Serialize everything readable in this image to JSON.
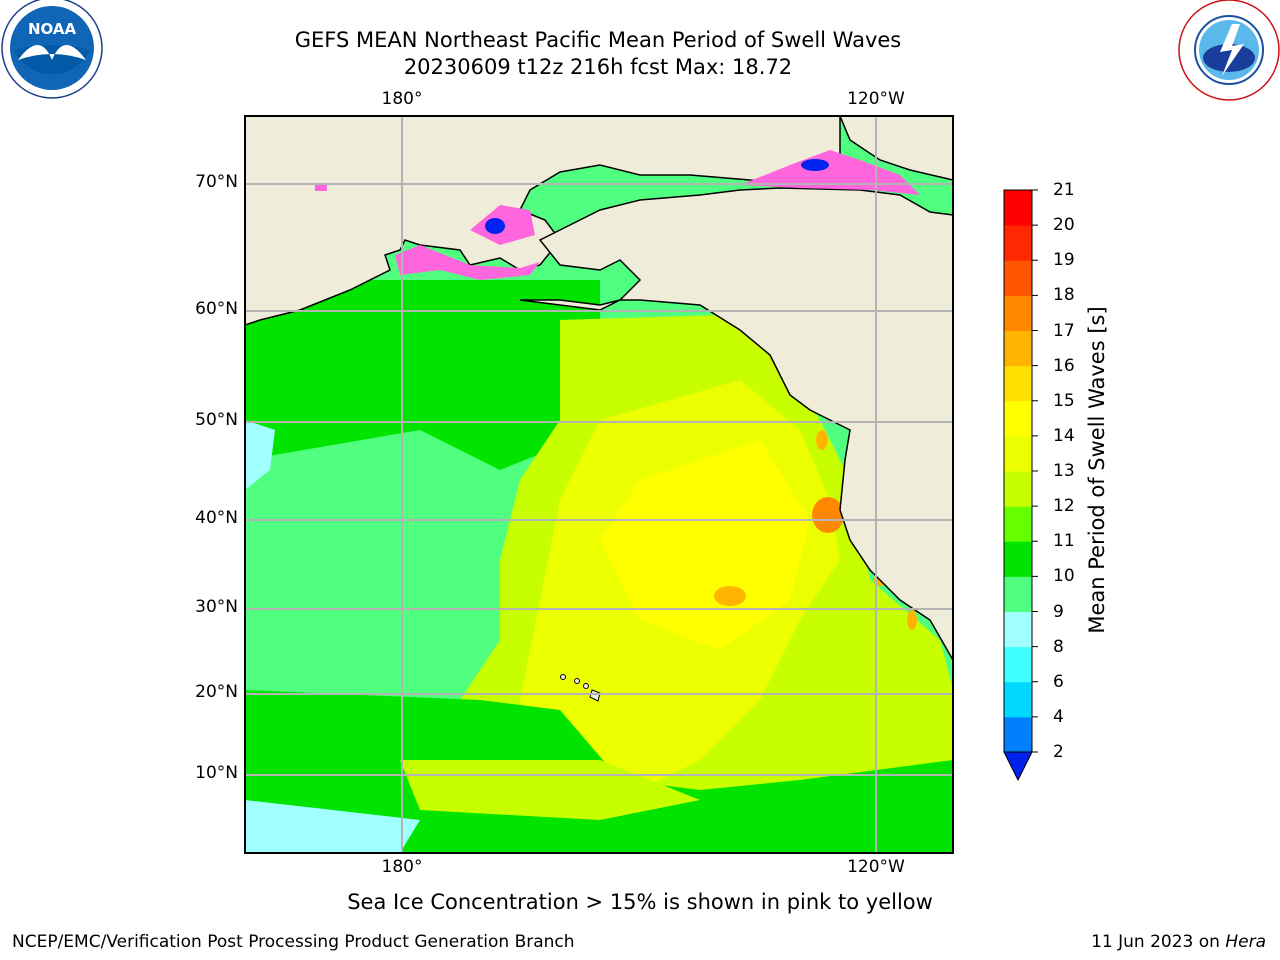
{
  "header": {
    "title_line1": "GEFS MEAN Northeast Pacific Mean Period of Swell Waves",
    "title_line2": "20230609 t12z 216h fcst   Max: 18.72"
  },
  "logos": {
    "left": "NOAA",
    "right": "NATIONAL WEATHER SERVICE"
  },
  "map": {
    "lon_labels": [
      "180°",
      "120°W"
    ],
    "lat_labels": [
      "70°N",
      "60°N",
      "50°N",
      "40°N",
      "30°N",
      "20°N",
      "10°N"
    ]
  },
  "colorbar": {
    "label": "Mean Period of Swell Waves [s]",
    "ticks": [
      "2",
      "4",
      "6",
      "8",
      "9",
      "10",
      "11",
      "12",
      "13",
      "14",
      "15",
      "16",
      "17",
      "18",
      "19",
      "20",
      "21"
    ],
    "colors": [
      "#0022ee",
      "#0080ff",
      "#00d8ff",
      "#40ffff",
      "#a0ffff",
      "#50ff80",
      "#00e400",
      "#66ff00",
      "#c8ff00",
      "#ecff00",
      "#ffff00",
      "#ffe000",
      "#ffb400",
      "#ff8800",
      "#ff5500",
      "#ff2800",
      "#ff0000"
    ]
  },
  "colors": {
    "land": "#efedda",
    "sea_ice_pink": "#ff66dd"
  },
  "note": "Sea Ice Concentration > 15% is shown in pink to yellow",
  "footer": {
    "left": "NCEP/EMC/Verification Post Processing Product Generation Branch",
    "right_date": "11 Jun 2023 on ",
    "right_host": "Hera"
  }
}
